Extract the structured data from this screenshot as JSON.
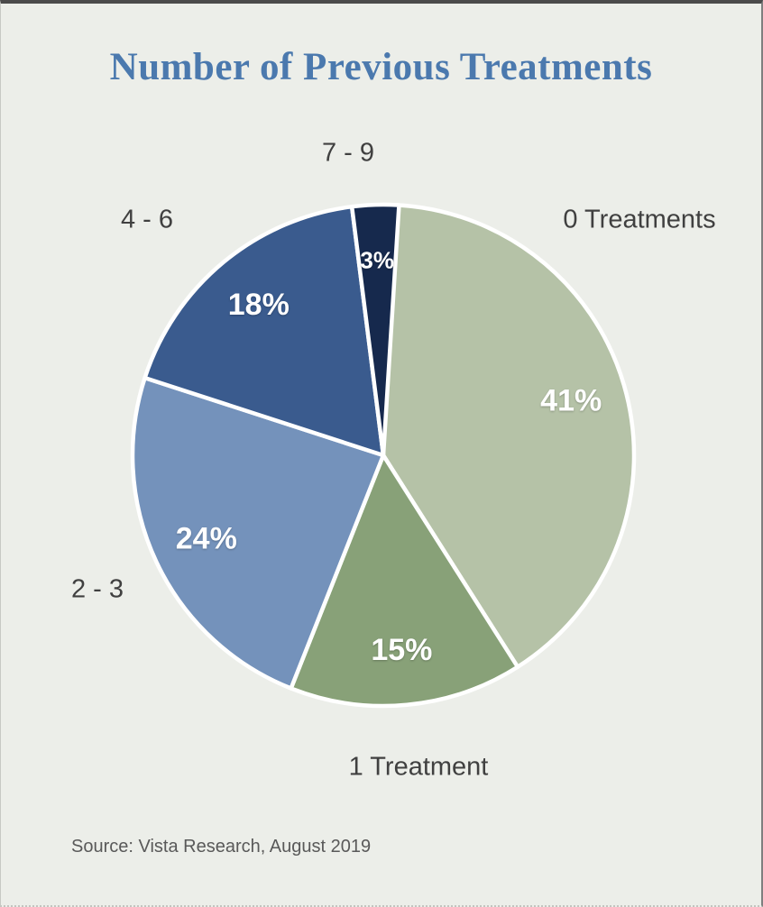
{
  "title": "Number of Previous Treatments",
  "source": "Source: Vista Research, August 2019",
  "colors": {
    "background": "#ECEEE9",
    "title_text": "#4B79AE",
    "category_label": "#404040",
    "percent_label": "#FFFFFF",
    "source_text": "#595959",
    "slice_border": "#FFFFFF"
  },
  "chart_data": {
    "type": "pie",
    "title": "Number of Previous Treatments",
    "start_angle_deg": 0,
    "direction": "clockwise",
    "legend_position": "outside-labels",
    "slices": [
      {
        "label": "0 Treatments",
        "value": 41,
        "percent_text": "41%",
        "color": "#B5C2A7"
      },
      {
        "label": "1 Treatment",
        "value": 15,
        "percent_text": "15%",
        "color": "#88A178"
      },
      {
        "label": "2 - 3",
        "value": 24,
        "percent_text": "24%",
        "color": "#7492BB"
      },
      {
        "label": "4 - 6",
        "value": 18,
        "percent_text": "18%",
        "color": "#3A5B8E"
      },
      {
        "label": "7 - 9",
        "value": 3,
        "percent_text": "3%",
        "color": "#16294D"
      }
    ],
    "source": "Source: Vista Research, August 2019"
  }
}
